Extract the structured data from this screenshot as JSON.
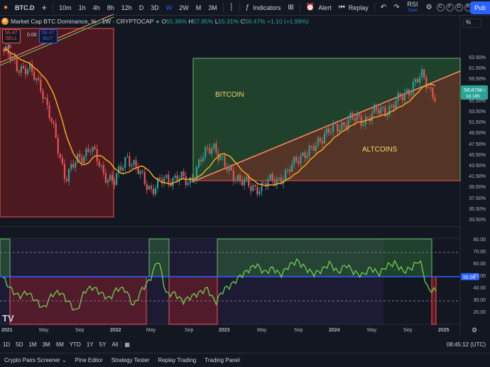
{
  "toolbar": {
    "symbol": "BTC.D",
    "add_symbol": "+",
    "intervals": [
      "10m",
      "1h",
      "4h",
      "8h",
      "12h",
      "D",
      "3D",
      "W",
      "2W",
      "M",
      "3M"
    ],
    "active_interval": "W",
    "indicators_label": "Indicators",
    "alert_label": "Alert",
    "replay_label": "Replay",
    "rsi_tab": "RSI",
    "rsi_tab_sub": "Save",
    "currency_buttons": [
      "C",
      "F",
      "O",
      "R"
    ],
    "publish_label": "Pub"
  },
  "legend": {
    "title": "Market Cap BTC Dominance, % · 1W · CRYPTOCAP",
    "o_label": "O",
    "o": "55.36%",
    "h_label": "H",
    "h": "57.95%",
    "l_label": "L",
    "l": "55.31%",
    "c_label": "C",
    "c": "56.47%",
    "change": "+1.10 (+1.99%)",
    "sell_price": "56.47",
    "sell_label": "SELL",
    "spread": "0.00",
    "buy_price": "56.47",
    "buy_label": "BUY",
    "indicator_count": "5",
    "percent_toggle": "%"
  },
  "annotations": {
    "bitcoin": "BITCOIN",
    "altcoins": "ALTCOINS"
  },
  "price_tag": {
    "value": "56.47%",
    "countdown": "1d 18h"
  },
  "colors": {
    "up": "#26a69a",
    "down": "#ef5350",
    "ma": "#f5a623",
    "rsi": "#6fcf4f",
    "accent": "#2962ff"
  },
  "chart_data": [
    {
      "type": "candlestick",
      "title": "Market Cap BTC Dominance, % · 1W · CRYPTOCAP",
      "x": [
        "2021",
        "May",
        "Sep",
        "2022",
        "May",
        "Sep",
        "2023",
        "May",
        "Sep",
        "2024",
        "May",
        "Sep",
        "2025"
      ],
      "y_ticks": [
        "63.50%",
        "61.50%",
        "59.50%",
        "57.50%",
        "55.50%",
        "53.50%",
        "51.50%",
        "49.50%",
        "47.50%",
        "45.50%",
        "43.50%",
        "41.50%",
        "39.50%",
        "37.50%",
        "35.50%",
        "33.50%"
      ],
      "ylim": [
        33.5,
        65.5
      ],
      "close_approx": [
        {
          "x": "2021",
          "y": 64.5
        },
        {
          "x": "Jan 2021",
          "y": 62.0
        },
        {
          "x": "Feb 2021",
          "y": 61.0
        },
        {
          "x": "Mar 2021",
          "y": 58.5
        },
        {
          "x": "Apr 2021",
          "y": 50.5
        },
        {
          "x": "May 2021",
          "y": 42.0
        },
        {
          "x": "Jun 2021",
          "y": 45.0
        },
        {
          "x": "Jul 2021",
          "y": 47.5
        },
        {
          "x": "Aug 2021",
          "y": 43.0
        },
        {
          "x": "Sep 2021",
          "y": 41.0
        },
        {
          "x": "Oct 2021",
          "y": 46.0
        },
        {
          "x": "Nov 2021",
          "y": 42.5
        },
        {
          "x": "Dec 2021",
          "y": 39.8
        },
        {
          "x": "2022",
          "y": 41.5
        },
        {
          "x": "Mar 2022",
          "y": 42.0
        },
        {
          "x": "Apr 2022",
          "y": 41.0
        },
        {
          "x": "May 2022",
          "y": 45.0
        },
        {
          "x": "Jun 2022",
          "y": 48.0
        },
        {
          "x": "Jul 2022",
          "y": 43.5
        },
        {
          "x": "Aug 2022",
          "y": 42.0
        },
        {
          "x": "Sep 2022",
          "y": 40.0
        },
        {
          "x": "Nov 2022",
          "y": 40.5
        },
        {
          "x": "2023",
          "y": 41.5
        },
        {
          "x": "Feb 2023",
          "y": 42.5
        },
        {
          "x": "Mar 2023",
          "y": 46.0
        },
        {
          "x": "May 2023",
          "y": 46.5
        },
        {
          "x": "Jul 2023",
          "y": 50.0
        },
        {
          "x": "Sep 2023",
          "y": 50.5
        },
        {
          "x": "Nov 2023",
          "y": 52.5
        },
        {
          "x": "2024",
          "y": 52.0
        },
        {
          "x": "Mar 2024",
          "y": 53.5
        },
        {
          "x": "May 2024",
          "y": 54.0
        },
        {
          "x": "Jul 2024",
          "y": 55.5
        },
        {
          "x": "Sep 2024",
          "y": 58.0
        },
        {
          "x": "Oct 2024",
          "y": 60.0
        },
        {
          "x": "Nov 2024",
          "y": 56.47
        }
      ],
      "series": [
        {
          "name": "",
          "type": "moving-average",
          "color": "#f5a623"
        }
      ]
    },
    {
      "type": "line",
      "title": "",
      "y_ticks": [
        "80.00",
        "70.00",
        "60.00",
        "50.00",
        "40.00",
        "30.00",
        "20.00"
      ],
      "ylim": [
        15,
        85
      ],
      "levels": [
        70,
        50,
        30
      ],
      "values": [
        54,
        44,
        38,
        42,
        35,
        28,
        40,
        42,
        34,
        25,
        43,
        46,
        41,
        36,
        45,
        44,
        30,
        44,
        52,
        70,
        40,
        41,
        34,
        38,
        41,
        45,
        33,
        44,
        48,
        55,
        60,
        65,
        58,
        62,
        56,
        64,
        68,
        62,
        57,
        60,
        66,
        58,
        65,
        58,
        56,
        62,
        57,
        64,
        66,
        59,
        62,
        69,
        44,
        43
      ]
    }
  ],
  "x_axis": [
    "2021",
    "May",
    "Sep",
    "2022",
    "May",
    "Sep",
    "2023",
    "May",
    "Sep",
    "2024",
    "May",
    "Sep",
    "2025"
  ],
  "rsi_axis": [
    "80.00",
    "70.00",
    "60.00",
    "50.00",
    "40.00",
    "30.00",
    "20.00"
  ],
  "rsi_value": "50.00",
  "range_buttons": [
    "1D",
    "5D",
    "1M",
    "3M",
    "6M",
    "YTD",
    "1Y",
    "5Y",
    "All"
  ],
  "clock": "08:45:12 (UTC)",
  "footer_tabs": [
    "Crypto Pairs Screener",
    "Pine Editor",
    "Strategy Tester",
    "Replay Trading",
    "Trading Panel"
  ]
}
